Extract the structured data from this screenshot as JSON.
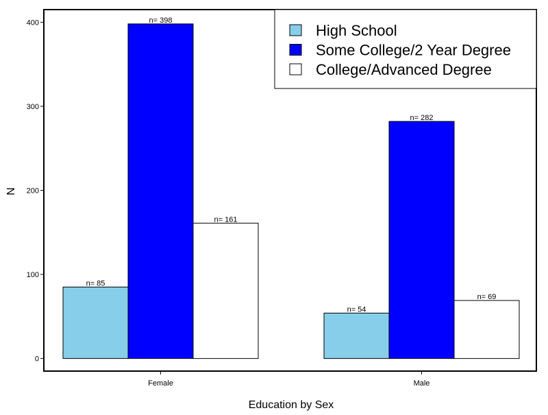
{
  "chart_data": {
    "type": "bar",
    "title": "",
    "xlabel": "Education by Sex",
    "ylabel": "N",
    "categories": [
      "Female",
      "Male"
    ],
    "series": [
      {
        "name": "High School",
        "values": [
          85,
          54
        ],
        "labels": [
          "n= 85",
          "n= 54"
        ],
        "color": "#87ceeb"
      },
      {
        "name": "Some College/2 Year Degree",
        "values": [
          398,
          282
        ],
        "labels": [
          "n= 398",
          "n= 282"
        ],
        "color": "#0000ff"
      },
      {
        "name": "College/Advanced Degree",
        "values": [
          161,
          69
        ],
        "labels": [
          "n= 161",
          "n= 69"
        ],
        "color": "#ffffff"
      }
    ],
    "ylim": [
      -15,
      415
    ],
    "yticks": [
      0,
      100,
      200,
      300,
      400
    ],
    "ytick_labels": [
      "0",
      "100",
      "200",
      "300",
      "400"
    ],
    "grid": false,
    "legend_position": "top-right"
  }
}
